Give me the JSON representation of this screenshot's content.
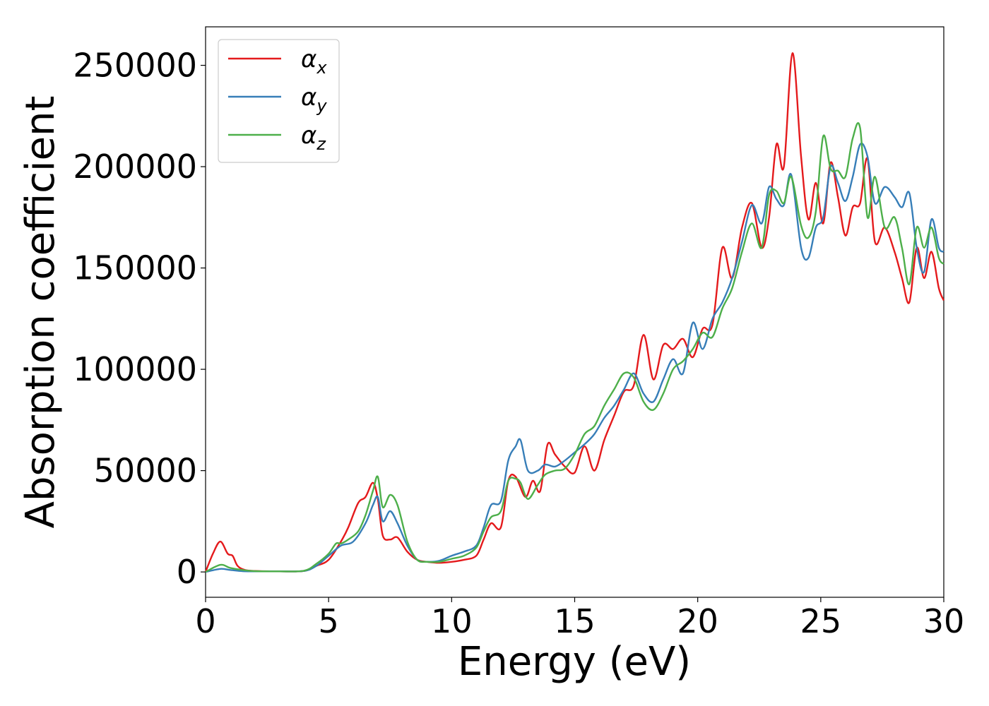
{
  "chart_data": {
    "type": "line",
    "xlabel": "Energy (eV)",
    "ylabel": "Absorption coefficient",
    "xlim": [
      0,
      30
    ],
    "ylim": [
      -12500,
      269000
    ],
    "xticks": [
      "0",
      "5",
      "10",
      "15",
      "20",
      "25",
      "30"
    ],
    "yticks": [
      "0",
      "50000",
      "100000",
      "150000",
      "200000",
      "250000"
    ],
    "grid": false,
    "legend_position": "top-left",
    "series": [
      {
        "name": "αx",
        "legend_base": "α",
        "legend_sub": "x",
        "color": "#e41a1c",
        "x": [
          0,
          0.3,
          0.6,
          0.9,
          1.1,
          1.3,
          1.6,
          2.0,
          3.0,
          4.0,
          4.5,
          5.0,
          5.5,
          5.8,
          6.2,
          6.5,
          6.8,
          7.0,
          7.2,
          7.5,
          7.8,
          8.2,
          8.6,
          9.0,
          9.5,
          10.0,
          10.5,
          11.0,
          11.3,
          11.6,
          12.0,
          12.3,
          12.6,
          13.0,
          13.3,
          13.6,
          13.9,
          14.2,
          14.6,
          15.0,
          15.4,
          15.8,
          16.2,
          16.6,
          17.0,
          17.4,
          17.8,
          18.2,
          18.6,
          19.0,
          19.4,
          19.8,
          20.2,
          20.6,
          21.0,
          21.4,
          21.8,
          22.2,
          22.6,
          22.9,
          23.2,
          23.5,
          23.85,
          24.2,
          24.5,
          24.8,
          25.1,
          25.4,
          25.7,
          26.0,
          26.3,
          26.6,
          26.9,
          27.2,
          27.6,
          28.0,
          28.3,
          28.6,
          28.9,
          29.2,
          29.5,
          29.8,
          30.0
        ],
        "y": [
          0,
          9000,
          15000,
          9000,
          8000,
          3000,
          1000,
          500,
          300,
          500,
          3000,
          6000,
          15000,
          22000,
          34000,
          37000,
          44000,
          36000,
          18000,
          16000,
          17000,
          10000,
          6000,
          5000,
          4500,
          5000,
          6000,
          8000,
          16000,
          24000,
          22000,
          45000,
          47000,
          37000,
          45000,
          40000,
          63000,
          58000,
          52000,
          49000,
          62000,
          50000,
          65000,
          77000,
          89000,
          92000,
          117000,
          95000,
          112000,
          110000,
          115000,
          106000,
          120000,
          122000,
          160000,
          145000,
          170000,
          182000,
          160000,
          175000,
          211000,
          200000,
          256000,
          205000,
          174000,
          192000,
          172000,
          202000,
          185000,
          166000,
          180000,
          182000,
          204000,
          163000,
          170000,
          158000,
          145000,
          133000,
          160000,
          145000,
          158000,
          140000,
          134000
        ]
      },
      {
        "name": "αy",
        "legend_base": "α",
        "legend_sub": "y",
        "color": "#377eb8",
        "x": [
          0,
          0.6,
          1.0,
          1.5,
          2.0,
          3.0,
          4.0,
          4.5,
          5.0,
          5.5,
          6.0,
          6.5,
          6.8,
          7.0,
          7.2,
          7.5,
          7.8,
          8.2,
          8.6,
          9.0,
          9.5,
          10.0,
          10.5,
          11.0,
          11.3,
          11.6,
          12.0,
          12.3,
          12.6,
          12.8,
          13.1,
          13.5,
          13.8,
          14.2,
          14.6,
          15.0,
          15.4,
          15.8,
          16.2,
          16.6,
          17.0,
          17.4,
          17.8,
          18.2,
          18.6,
          19.0,
          19.4,
          19.8,
          20.2,
          20.6,
          21.0,
          21.4,
          21.8,
          22.2,
          22.6,
          22.9,
          23.2,
          23.5,
          23.8,
          24.2,
          24.5,
          24.8,
          25.1,
          25.4,
          25.7,
          26.0,
          26.3,
          26.6,
          26.9,
          27.2,
          27.6,
          28.0,
          28.3,
          28.6,
          28.9,
          29.2,
          29.5,
          29.8,
          30.0
        ],
        "y": [
          0,
          1500,
          1000,
          400,
          300,
          300,
          500,
          3000,
          8000,
          13000,
          15000,
          24000,
          33000,
          37000,
          25000,
          30000,
          24000,
          13000,
          6000,
          5000,
          5500,
          8000,
          10000,
          13000,
          22000,
          33000,
          35000,
          55000,
          62000,
          65000,
          50000,
          50000,
          53000,
          52000,
          55000,
          59000,
          63000,
          68000,
          76000,
          82000,
          90000,
          98000,
          88000,
          84000,
          95000,
          105000,
          98000,
          123000,
          110000,
          125000,
          133000,
          145000,
          163000,
          181000,
          172000,
          190000,
          184000,
          181000,
          196000,
          160000,
          155000,
          170000,
          175000,
          200000,
          192000,
          183000,
          195000,
          211000,
          205000,
          182000,
          190000,
          185000,
          180000,
          187000,
          160000,
          148000,
          174000,
          160000,
          158000
        ]
      },
      {
        "name": "αz",
        "legend_base": "α",
        "legend_sub": "z",
        "color": "#4daf4a",
        "x": [
          0,
          0.6,
          1.0,
          1.5,
          2.0,
          3.0,
          4.0,
          4.5,
          5.0,
          5.3,
          5.5,
          5.8,
          6.2,
          6.5,
          6.8,
          7.0,
          7.2,
          7.5,
          7.8,
          8.2,
          8.6,
          9.0,
          9.5,
          10.0,
          10.5,
          11.0,
          11.3,
          11.6,
          12.0,
          12.3,
          12.6,
          12.8,
          13.1,
          13.5,
          13.8,
          14.2,
          14.6,
          15.0,
          15.4,
          15.8,
          16.2,
          16.6,
          17.0,
          17.4,
          17.8,
          18.2,
          18.6,
          19.0,
          19.4,
          19.8,
          20.2,
          20.6,
          21.0,
          21.4,
          21.8,
          22.2,
          22.6,
          22.9,
          23.2,
          23.5,
          23.8,
          24.2,
          24.5,
          24.8,
          25.1,
          25.4,
          25.7,
          26.0,
          26.3,
          26.6,
          26.9,
          27.2,
          27.6,
          28.0,
          28.3,
          28.6,
          28.9,
          29.2,
          29.5,
          29.8,
          30.0
        ],
        "y": [
          0,
          3500,
          2000,
          1000,
          400,
          300,
          600,
          4000,
          9000,
          14000,
          14000,
          16000,
          20000,
          28000,
          40000,
          47000,
          32000,
          38000,
          33000,
          15000,
          6000,
          5000,
          5000,
          6500,
          8000,
          12000,
          20000,
          27000,
          30000,
          45000,
          46000,
          44000,
          36000,
          43000,
          48000,
          50000,
          51000,
          58000,
          68000,
          72000,
          82000,
          90000,
          98000,
          96000,
          84000,
          80000,
          88000,
          100000,
          104000,
          110000,
          118000,
          116000,
          130000,
          140000,
          158000,
          172000,
          160000,
          186000,
          188000,
          182000,
          195000,
          171000,
          165000,
          178000,
          215000,
          199000,
          198000,
          195000,
          214000,
          219000,
          175000,
          195000,
          170000,
          175000,
          160000,
          142000,
          170000,
          160000,
          170000,
          155000,
          152000
        ]
      }
    ]
  }
}
